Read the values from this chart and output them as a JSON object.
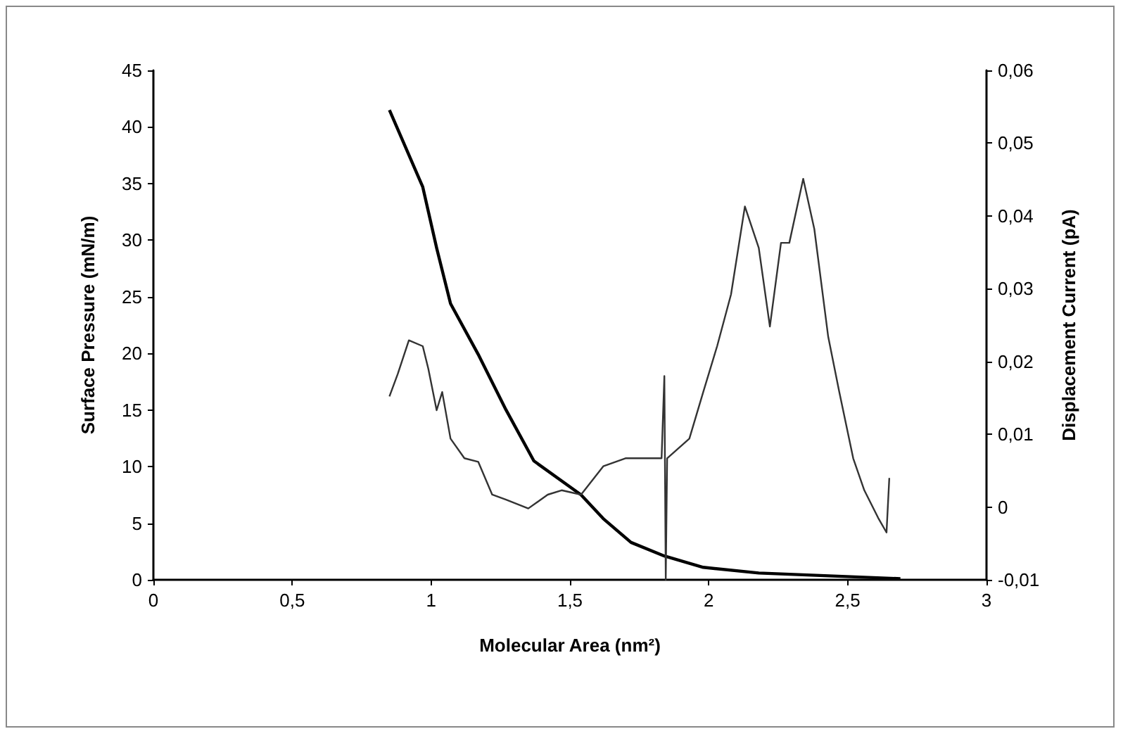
{
  "chart_data": {
    "type": "line",
    "xlabel": "Molecular Area (nm²)",
    "ylabel": "Surface Pressure (mN/m)",
    "y2label": "Displacement Current (pA)",
    "xlim": [
      0,
      3
    ],
    "xticks": [
      0,
      {
        "value": 0.5,
        "label": "0,5"
      },
      1,
      {
        "value": 1.5,
        "label": "1,5"
      },
      2,
      {
        "value": 2.5,
        "label": "2,5"
      },
      3
    ],
    "ylim": [
      0,
      45
    ],
    "yticks": [
      0,
      5,
      10,
      15,
      20,
      25,
      30,
      35,
      40,
      45
    ],
    "y2lim": [
      -0.01,
      0.06
    ],
    "y2ticks": [
      {
        "value": -0.01,
        "label": "-0,01"
      },
      0,
      {
        "value": 0.01,
        "label": "0,01"
      },
      {
        "value": 0.02,
        "label": "0,02"
      },
      {
        "value": 0.03,
        "label": "0,03"
      },
      {
        "value": 0.04,
        "label": "0,04"
      },
      {
        "value": 0.05,
        "label": "0,05"
      },
      {
        "value": 0.06,
        "label": "0,06"
      }
    ],
    "grid": false,
    "marker": "none",
    "line_style": "solid",
    "series": [
      {
        "color": "#000000",
        "x": [
          0.85,
          0.97,
          1.02,
          1.07,
          1.17,
          1.27,
          1.37,
          1.54,
          1.62,
          1.72,
          1.84,
          1.98,
          2.18,
          2.48,
          2.69
        ],
        "values": [
          41.5,
          34.7,
          29.3,
          24.4,
          19.9,
          15,
          10.5,
          7.5,
          5.4,
          3.3,
          2.1,
          1.1,
          0.6,
          0.3,
          0.1
        ]
      },
      {
        "color": "#333333",
        "axis": "y2",
        "x": [
          0.85,
          0.88,
          0.92,
          0.97,
          0.99,
          1.02,
          1.04,
          1.07,
          1.12,
          1.17,
          1.22,
          1.27,
          1.35,
          1.42,
          1.47,
          1.54,
          1.62,
          1.7,
          1.78,
          1.83,
          1.84,
          1.845,
          1.85,
          1.93,
          1.98,
          2.03,
          2.08,
          2.13,
          2.18,
          2.22,
          2.26,
          2.29,
          2.34,
          2.38,
          2.43,
          2.47,
          2.52,
          2.56,
          2.61,
          2.64,
          2.65
        ],
        "values": [
          0.0152,
          0.0183,
          0.0229,
          0.0221,
          0.019,
          0.0133,
          0.0158,
          0.0094,
          0.0067,
          0.0062,
          0.0017,
          0.001,
          -0.0002,
          0.0017,
          0.0023,
          0.0017,
          0.0056,
          0.0067,
          0.0067,
          0.0067,
          0.018,
          -0.01,
          0.0067,
          0.0094,
          0.0158,
          0.0221,
          0.0292,
          0.0413,
          0.0356,
          0.0248,
          0.0363,
          0.0363,
          0.0451,
          0.0382,
          0.0234,
          0.0158,
          0.0067,
          0.0023,
          -0.0015,
          -0.0035,
          0.004
        ]
      }
    ]
  }
}
